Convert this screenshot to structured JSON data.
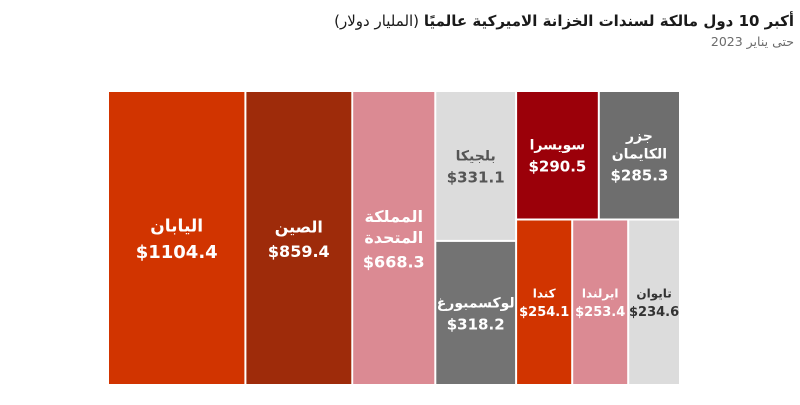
{
  "header": {
    "title_main": "أكبر 10 دول مالكة لسندات الخزانة الاميركية عالميًا",
    "title_unit": "(المليار دولار)",
    "subtitle": "حتى يناير 2023"
  },
  "chart_data": {
    "type": "treemap",
    "title": "أكبر 10 دول مالكة لسندات الخزانة الاميركية عالميًا (المليار دولار)",
    "subtitle": "حتى يناير 2023",
    "unit": "$ billion",
    "items": [
      {
        "name": "اليابان",
        "value": 1104.4,
        "label": "$1104.4",
        "color": "#d13400",
        "text_color": "#ffffff"
      },
      {
        "name": "الصين",
        "value": 859.4,
        "label": "$859.4",
        "color": "#9e2b0a",
        "text_color": "#ffffff"
      },
      {
        "name": "المملكة المتحدة",
        "lines": [
          "المملكة",
          "المتحدة"
        ],
        "value": 668.3,
        "label": "$668.3",
        "color": "#db8a93",
        "text_color": "#ffffff"
      },
      {
        "name": "بلجيكا",
        "value": 331.1,
        "label": "$331.1",
        "color": "#dcdcdc",
        "text_color": "#555555"
      },
      {
        "name": "لوكسمبورغ",
        "value": 318.2,
        "label": "$318.2",
        "color": "#737373",
        "text_color": "#ffffff"
      },
      {
        "name": "سويسرا",
        "value": 290.5,
        "label": "$290.5",
        "color": "#9b0009",
        "text_color": "#ffffff"
      },
      {
        "name": "جزر الكايمان",
        "lines": [
          "جزر",
          "الكايمان"
        ],
        "value": 285.3,
        "label": "$285.3",
        "color": "#6e6e6e",
        "text_color": "#ffffff"
      },
      {
        "name": "كندا",
        "value": 254.1,
        "label": "$254.1",
        "color": "#d13400",
        "text_color": "#ffffff"
      },
      {
        "name": "ايرلندا",
        "value": 253.4,
        "label": "$253.4",
        "color": "#db8a93",
        "text_color": "#ffffff"
      },
      {
        "name": "تايوان",
        "value": 234.6,
        "label": "$234.6",
        "color": "#dcdcdc",
        "text_color": "#333333"
      }
    ]
  }
}
